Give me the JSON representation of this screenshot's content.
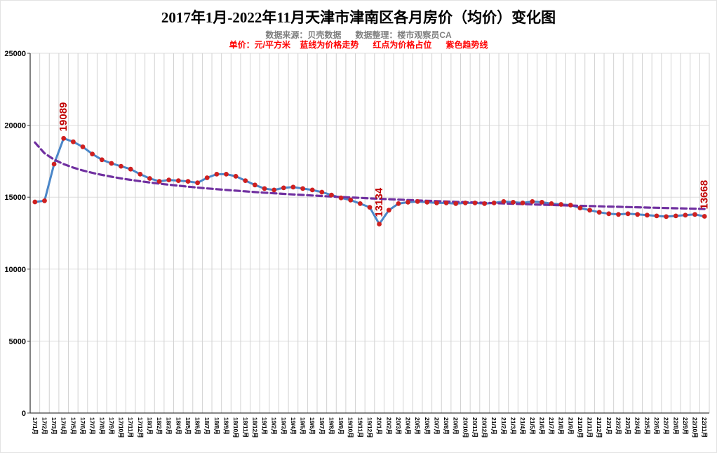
{
  "header": {
    "title": "2017年1月-2022年11月天津市津南区各月房价（均价）变化图",
    "source_line": "数据来源：贝壳数据      数据整理：楼市观察员CA",
    "legend_line": "单价：元/平方米    蓝线为价格走势      红点为价格占位      紫色趋势线"
  },
  "colors": {
    "price_line": "#4a86c8",
    "dot": "#cf2020",
    "trend": "#7030a0",
    "annotation": "#c00000",
    "grid": "#d2d2d2",
    "axis": "#404040",
    "source_text": "#808080",
    "legend_text": "#ff0000"
  },
  "chart_data": {
    "type": "line",
    "title": "2017年1月-2022年11月天津市津南区各月房价（均价）变化图",
    "xlabel": "",
    "ylabel": "元/平方米",
    "ylim": [
      0,
      25000
    ],
    "yticks": [
      0,
      5000,
      10000,
      15000,
      20000,
      25000
    ],
    "grid": "both",
    "legend_position": "none",
    "categories": [
      "17/1月",
      "17/2月",
      "17/3月",
      "17/4月",
      "17/5月",
      "17/6月",
      "17/7月",
      "17/8月",
      "17/9月",
      "17/10月",
      "17/11月",
      "17/12月",
      "18/1月",
      "18/2月",
      "18/3月",
      "18/4月",
      "18/5月",
      "18/6月",
      "18/7月",
      "18/8月",
      "18/9月",
      "18/10月",
      "18/11月",
      "18/12月",
      "19/1月",
      "19/2月",
      "19/3月",
      "19/4月",
      "19/5月",
      "19/6月",
      "19/7月",
      "19/8月",
      "19/9月",
      "19/10月",
      "19/11月",
      "19/12月",
      "20/1月",
      "20/2月",
      "20/3月",
      "20/4月",
      "20/5月",
      "20/6月",
      "20/7月",
      "20/8月",
      "20/9月",
      "20/10月",
      "20/11月",
      "20/12月",
      "21/1月",
      "21/2月",
      "21/3月",
      "21/4月",
      "21/5月",
      "21/6月",
      "21/7月",
      "21/8月",
      "21/9月",
      "21/10月",
      "21/11月",
      "21/12月",
      "22/1月",
      "22/2月",
      "22/3月",
      "22/4月",
      "22/5月",
      "22/6月",
      "22/7月",
      "22/8月",
      "22/9月",
      "22/10月",
      "22/11月"
    ],
    "series": [
      {
        "name": "价格走势(蓝线+红点)",
        "type": "line",
        "color": "#4a86c8",
        "marker_color": "#cf2020",
        "values": [
          14670,
          14750,
          17300,
          19089,
          18850,
          18500,
          18000,
          17600,
          17350,
          17150,
          16950,
          16600,
          16300,
          16100,
          16200,
          16150,
          16100,
          16000,
          16350,
          16600,
          16600,
          16450,
          16150,
          15850,
          15600,
          15500,
          15650,
          15700,
          15600,
          15500,
          15350,
          15150,
          14950,
          14800,
          14550,
          14300,
          13134,
          14100,
          14550,
          14650,
          14700,
          14650,
          14600,
          14600,
          14550,
          14600,
          14600,
          14550,
          14600,
          14700,
          14650,
          14600,
          14700,
          14650,
          14550,
          14500,
          14450,
          14250,
          14100,
          13950,
          13850,
          13800,
          13850,
          13800,
          13750,
          13700,
          13650,
          13700,
          13750,
          13800,
          13668
        ]
      },
      {
        "name": "紫色趋势线",
        "type": "dashed-line",
        "color": "#7030a0",
        "values": [
          18800,
          18049,
          17610,
          17299,
          17057,
          16859,
          16692,
          16548,
          16421,
          16306,
          16203,
          16109,
          16022,
          15942,
          15867,
          15797,
          15732,
          15670,
          15611,
          15555,
          15502,
          15452,
          15405,
          15358,
          15314,
          15272,
          15230,
          15191,
          15154,
          15117,
          15081,
          15046,
          15013,
          14981,
          14950,
          14919,
          14889,
          14860,
          14832,
          14805,
          14778,
          14752,
          14727,
          14702,
          14677,
          14653,
          14631,
          14608,
          14585,
          14563,
          14542,
          14521,
          14500,
          14480,
          14460,
          14441,
          14421,
          14403,
          14384,
          14366,
          14348,
          14330,
          14313,
          14296,
          14280,
          14262,
          14246,
          14230,
          14215,
          14199,
          14183
        ]
      }
    ],
    "annotations": [
      {
        "category": "17/4月",
        "index": 3,
        "text": "19089",
        "color": "#c00000"
      },
      {
        "category": "20/1月",
        "index": 36,
        "text": "13134",
        "color": "#c00000"
      },
      {
        "category": "22/11月",
        "index": 70,
        "text": "13668",
        "color": "#c00000"
      }
    ]
  }
}
